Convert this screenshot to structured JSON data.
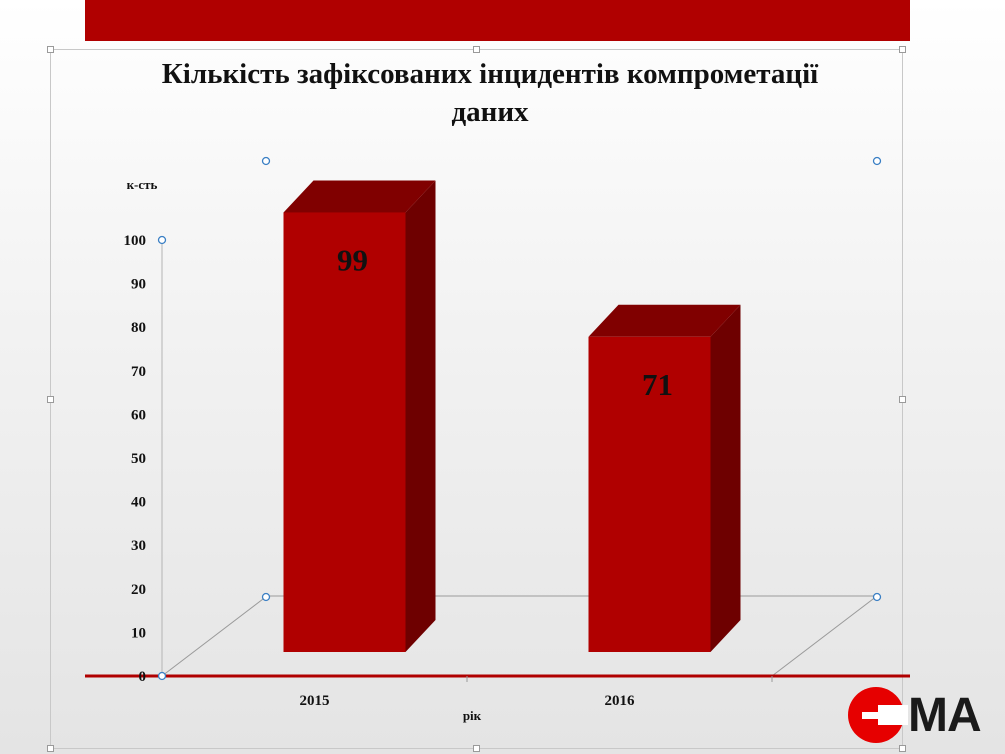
{
  "chart_data": {
    "type": "bar",
    "title": "Кількість зафіксованих інцидентів компрометації даних",
    "ylabel": "к-сть",
    "xlabel": "рік",
    "categories": [
      "2015",
      "2016"
    ],
    "values": [
      99,
      71
    ],
    "data_labels": [
      "99",
      "71"
    ],
    "ylim": [
      0,
      100
    ],
    "yticks": [
      0,
      10,
      20,
      30,
      40,
      50,
      60,
      70,
      80,
      90,
      100
    ],
    "ytick_labels": [
      "0",
      "10",
      "20",
      "30",
      "40",
      "50",
      "60",
      "70",
      "80",
      "90",
      "100"
    ],
    "grid": false,
    "three_d": true,
    "colors": {
      "bar_front": "#b00000",
      "bar_top": "#800000",
      "bar_side": "#6e0000",
      "baseline": "#b00000"
    }
  },
  "branding": {
    "banner_color": "#b00000",
    "logo_text": "MA",
    "logo_color": "#e60000"
  }
}
